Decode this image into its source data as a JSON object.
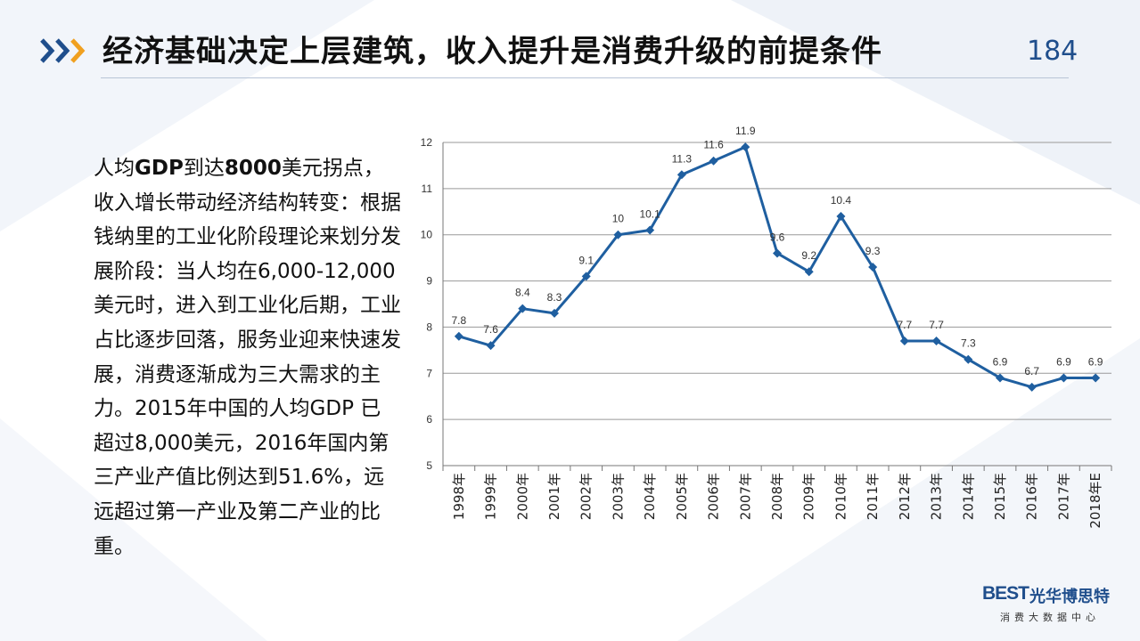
{
  "header": {
    "title": "经济基础决定上层建筑，收入提升是消费升级的前提条件",
    "page_number": "184"
  },
  "body": {
    "line1_pre": "人均",
    "line1_bold1": "GDP",
    "line1_mid": "到达",
    "line1_bold2": "8000",
    "line1_post": "美元拐点，",
    "paragraph": "收入增长带动经济结构转变：根据钱纳里的工业化阶段理论来划分发展阶段：当人均在6,000-12,000美元时，进入到工业化后期，工业占比逐步回落，服务业迎来快速发展，消费逐渐成为三大需求的主力。2015年中国的人均GDP 已超过8,000美元，2016年国内第三产业产值比例达到51.6%，远远超过第一产业及第二产业的比重。"
  },
  "logo": {
    "mark": "BEST",
    "name": "光华博思特",
    "subtitle": "消费大数据中心"
  },
  "colors": {
    "line": "#1f5fa0",
    "accent_orange": "#f0a020",
    "accent_blue": "#1f4e8c"
  },
  "chart_data": {
    "type": "line",
    "title": "",
    "xlabel": "",
    "ylabel": "",
    "ylim": [
      5,
      12
    ],
    "yticks": [
      5,
      6,
      7,
      8,
      9,
      10,
      11,
      12
    ],
    "grid": true,
    "categories": [
      "1998年",
      "1999年",
      "2000年",
      "2001年",
      "2002年",
      "2003年",
      "2004年",
      "2005年",
      "2006年",
      "2007年",
      "2008年",
      "2009年",
      "2010年",
      "2011年",
      "2012年",
      "2013年",
      "2014年",
      "2015年",
      "2016年",
      "2017年",
      "2018年E"
    ],
    "series": [
      {
        "values": [
          7.8,
          7.6,
          8.4,
          8.3,
          9.1,
          10,
          10.1,
          11.3,
          11.6,
          11.9,
          9.6,
          9.2,
          10.4,
          9.3,
          7.7,
          7.7,
          7.3,
          6.9,
          6.7,
          6.9,
          6.9
        ],
        "labels": [
          "7.8",
          "7.6",
          "8.4",
          "8.3",
          "9.1",
          "10",
          "10.1",
          "11.3",
          "11.6",
          "11.9",
          "9.6",
          "9.2",
          "10.4",
          "9.3",
          "7.7",
          "7.7",
          "7.3",
          "6.9",
          "6.7",
          "6.9",
          "6.9"
        ]
      }
    ]
  }
}
